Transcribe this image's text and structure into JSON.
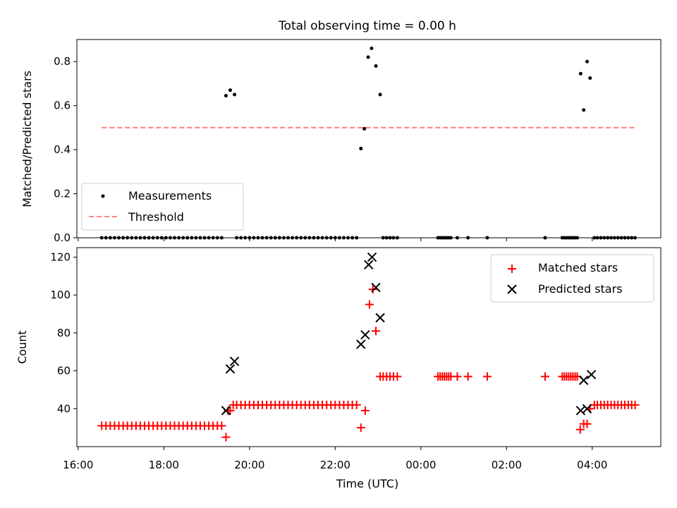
{
  "figure": {
    "title": "Total observing time = 0.00 h",
    "xlabel": "Time (UTC)",
    "x_ticks": [
      {
        "hour": 16,
        "label": "16:00"
      },
      {
        "hour": 18,
        "label": "18:00"
      },
      {
        "hour": 20,
        "label": "20:00"
      },
      {
        "hour": 22,
        "label": "22:00"
      },
      {
        "hour": 24,
        "label": "00:00"
      },
      {
        "hour": 26,
        "label": "02:00"
      },
      {
        "hour": 28,
        "label": "04:00"
      }
    ],
    "xlim": [
      15.97,
      29.6
    ]
  },
  "chart_data": [
    {
      "type": "scatter",
      "ylabel": "Matched/Predicted stars",
      "ylim": [
        0,
        0.9
      ],
      "y_ticks": [
        {
          "value": 0.0,
          "label": "0.0"
        },
        {
          "value": 0.2,
          "label": "0.2"
        },
        {
          "value": 0.4,
          "label": "0.4"
        },
        {
          "value": 0.6,
          "label": "0.6"
        },
        {
          "value": 0.8,
          "label": "0.8"
        }
      ],
      "legend": {
        "position": "lower-left",
        "entries": [
          "Measurements",
          "Threshold"
        ]
      },
      "series": [
        {
          "name": "Measurements",
          "marker": "dot",
          "color": "#000000",
          "points": [
            [
              16.55,
              0
            ],
            [
              16.65,
              0
            ],
            [
              16.75,
              0
            ],
            [
              16.85,
              0
            ],
            [
              16.95,
              0
            ],
            [
              17.05,
              0
            ],
            [
              17.15,
              0
            ],
            [
              17.25,
              0
            ],
            [
              17.35,
              0
            ],
            [
              17.45,
              0
            ],
            [
              17.55,
              0
            ],
            [
              17.65,
              0
            ],
            [
              17.75,
              0
            ],
            [
              17.85,
              0
            ],
            [
              17.95,
              0
            ],
            [
              18.05,
              0
            ],
            [
              18.15,
              0
            ],
            [
              18.25,
              0
            ],
            [
              18.35,
              0
            ],
            [
              18.45,
              0
            ],
            [
              18.55,
              0
            ],
            [
              18.65,
              0
            ],
            [
              18.75,
              0
            ],
            [
              18.85,
              0
            ],
            [
              18.95,
              0
            ],
            [
              19.05,
              0
            ],
            [
              19.15,
              0
            ],
            [
              19.25,
              0
            ],
            [
              19.35,
              0
            ],
            [
              19.45,
              0.645
            ],
            [
              19.55,
              0.67
            ],
            [
              19.65,
              0.65
            ],
            [
              19.7,
              0
            ],
            [
              19.8,
              0
            ],
            [
              19.9,
              0
            ],
            [
              20.0,
              0
            ],
            [
              20.1,
              0
            ],
            [
              20.2,
              0
            ],
            [
              20.3,
              0
            ],
            [
              20.4,
              0
            ],
            [
              20.5,
              0
            ],
            [
              20.6,
              0
            ],
            [
              20.7,
              0
            ],
            [
              20.8,
              0
            ],
            [
              20.9,
              0
            ],
            [
              21.0,
              0
            ],
            [
              21.1,
              0
            ],
            [
              21.2,
              0
            ],
            [
              21.3,
              0
            ],
            [
              21.4,
              0
            ],
            [
              21.5,
              0
            ],
            [
              21.6,
              0
            ],
            [
              21.7,
              0
            ],
            [
              21.8,
              0
            ],
            [
              21.9,
              0
            ],
            [
              22.0,
              0
            ],
            [
              22.1,
              0
            ],
            [
              22.2,
              0
            ],
            [
              22.3,
              0
            ],
            [
              22.4,
              0
            ],
            [
              22.5,
              0
            ],
            [
              22.6,
              0.405
            ],
            [
              22.68,
              0.495
            ],
            [
              22.77,
              0.82
            ],
            [
              22.85,
              0.86
            ],
            [
              22.95,
              0.78
            ],
            [
              23.05,
              0.65
            ],
            [
              23.12,
              0
            ],
            [
              23.2,
              0
            ],
            [
              23.28,
              0
            ],
            [
              23.36,
              0
            ],
            [
              23.45,
              0
            ],
            [
              24.4,
              0
            ],
            [
              24.45,
              0
            ],
            [
              24.5,
              0
            ],
            [
              24.55,
              0
            ],
            [
              24.6,
              0
            ],
            [
              24.65,
              0
            ],
            [
              24.7,
              0
            ],
            [
              24.85,
              0
            ],
            [
              25.1,
              0
            ],
            [
              25.55,
              0
            ],
            [
              26.9,
              0
            ],
            [
              27.3,
              0
            ],
            [
              27.35,
              0
            ],
            [
              27.4,
              0
            ],
            [
              27.45,
              0
            ],
            [
              27.5,
              0
            ],
            [
              27.55,
              0
            ],
            [
              27.6,
              0
            ],
            [
              27.65,
              0
            ],
            [
              27.73,
              0.745
            ],
            [
              27.8,
              0.58
            ],
            [
              27.88,
              0.8
            ],
            [
              27.95,
              0.725
            ],
            [
              28.05,
              0
            ],
            [
              28.12,
              0
            ],
            [
              28.2,
              0
            ],
            [
              28.28,
              0
            ],
            [
              28.36,
              0
            ],
            [
              28.44,
              0
            ],
            [
              28.52,
              0
            ],
            [
              28.6,
              0
            ],
            [
              28.68,
              0
            ],
            [
              28.76,
              0
            ],
            [
              28.84,
              0
            ],
            [
              28.92,
              0
            ],
            [
              29.0,
              0
            ]
          ]
        },
        {
          "name": "Threshold",
          "marker": "dashed-line",
          "color": "#ff7f7f",
          "points": [
            [
              16.55,
              0.5
            ],
            [
              29.0,
              0.5
            ]
          ]
        }
      ]
    },
    {
      "type": "scatter",
      "ylabel": "Count",
      "ylim": [
        20,
        125
      ],
      "y_ticks": [
        {
          "value": 40,
          "label": "40"
        },
        {
          "value": 60,
          "label": "60"
        },
        {
          "value": 80,
          "label": "80"
        },
        {
          "value": 100,
          "label": "100"
        },
        {
          "value": 120,
          "label": "120"
        }
      ],
      "legend": {
        "position": "upper-right",
        "entries": [
          "Matched stars",
          "Predicted stars"
        ]
      },
      "series": [
        {
          "name": "Matched stars",
          "marker": "plus",
          "color": "#ff0000",
          "points": [
            [
              16.55,
              31
            ],
            [
              16.65,
              31
            ],
            [
              16.75,
              31
            ],
            [
              16.85,
              31
            ],
            [
              16.95,
              31
            ],
            [
              17.05,
              31
            ],
            [
              17.15,
              31
            ],
            [
              17.25,
              31
            ],
            [
              17.35,
              31
            ],
            [
              17.45,
              31
            ],
            [
              17.55,
              31
            ],
            [
              17.65,
              31
            ],
            [
              17.75,
              31
            ],
            [
              17.85,
              31
            ],
            [
              17.95,
              31
            ],
            [
              18.05,
              31
            ],
            [
              18.15,
              31
            ],
            [
              18.25,
              31
            ],
            [
              18.35,
              31
            ],
            [
              18.45,
              31
            ],
            [
              18.55,
              31
            ],
            [
              18.65,
              31
            ],
            [
              18.75,
              31
            ],
            [
              18.85,
              31
            ],
            [
              18.95,
              31
            ],
            [
              19.05,
              31
            ],
            [
              19.15,
              31
            ],
            [
              19.25,
              31
            ],
            [
              19.35,
              31
            ],
            [
              19.45,
              25
            ],
            [
              19.5,
              39
            ],
            [
              19.55,
              39
            ],
            [
              19.62,
              42
            ],
            [
              19.7,
              42
            ],
            [
              19.8,
              42
            ],
            [
              19.9,
              42
            ],
            [
              20.0,
              42
            ],
            [
              20.1,
              42
            ],
            [
              20.2,
              42
            ],
            [
              20.3,
              42
            ],
            [
              20.4,
              42
            ],
            [
              20.5,
              42
            ],
            [
              20.6,
              42
            ],
            [
              20.7,
              42
            ],
            [
              20.8,
              42
            ],
            [
              20.9,
              42
            ],
            [
              21.0,
              42
            ],
            [
              21.1,
              42
            ],
            [
              21.2,
              42
            ],
            [
              21.3,
              42
            ],
            [
              21.4,
              42
            ],
            [
              21.5,
              42
            ],
            [
              21.6,
              42
            ],
            [
              21.7,
              42
            ],
            [
              21.8,
              42
            ],
            [
              21.9,
              42
            ],
            [
              22.0,
              42
            ],
            [
              22.1,
              42
            ],
            [
              22.2,
              42
            ],
            [
              22.3,
              42
            ],
            [
              22.4,
              42
            ],
            [
              22.5,
              42
            ],
            [
              22.6,
              30
            ],
            [
              22.7,
              39
            ],
            [
              22.8,
              95
            ],
            [
              22.88,
              103
            ],
            [
              22.95,
              81
            ],
            [
              23.05,
              57
            ],
            [
              23.12,
              57
            ],
            [
              23.2,
              57
            ],
            [
              23.28,
              57
            ],
            [
              23.36,
              57
            ],
            [
              23.45,
              57
            ],
            [
              24.4,
              57
            ],
            [
              24.45,
              57
            ],
            [
              24.5,
              57
            ],
            [
              24.55,
              57
            ],
            [
              24.6,
              57
            ],
            [
              24.65,
              57
            ],
            [
              24.7,
              57
            ],
            [
              24.85,
              57
            ],
            [
              25.1,
              57
            ],
            [
              25.55,
              57
            ],
            [
              26.9,
              57
            ],
            [
              27.3,
              57
            ],
            [
              27.35,
              57
            ],
            [
              27.4,
              57
            ],
            [
              27.45,
              57
            ],
            [
              27.5,
              57
            ],
            [
              27.55,
              57
            ],
            [
              27.6,
              57
            ],
            [
              27.65,
              57
            ],
            [
              27.72,
              29
            ],
            [
              27.8,
              32
            ],
            [
              27.88,
              32
            ],
            [
              27.95,
              40
            ],
            [
              28.05,
              42
            ],
            [
              28.12,
              42
            ],
            [
              28.2,
              42
            ],
            [
              28.28,
              42
            ],
            [
              28.36,
              42
            ],
            [
              28.44,
              42
            ],
            [
              28.52,
              42
            ],
            [
              28.6,
              42
            ],
            [
              28.68,
              42
            ],
            [
              28.76,
              42
            ],
            [
              28.84,
              42
            ],
            [
              28.92,
              42
            ],
            [
              29.0,
              42
            ]
          ]
        },
        {
          "name": "Predicted stars",
          "marker": "x",
          "color": "#000000",
          "points": [
            [
              19.45,
              39
            ],
            [
              19.55,
              61
            ],
            [
              19.65,
              65
            ],
            [
              22.6,
              74
            ],
            [
              22.7,
              79
            ],
            [
              22.78,
              116
            ],
            [
              22.86,
              120
            ],
            [
              22.95,
              104
            ],
            [
              23.05,
              88
            ],
            [
              27.73,
              39
            ],
            [
              27.8,
              55
            ],
            [
              27.88,
              40
            ],
            [
              27.98,
              58
            ]
          ]
        }
      ]
    }
  ]
}
